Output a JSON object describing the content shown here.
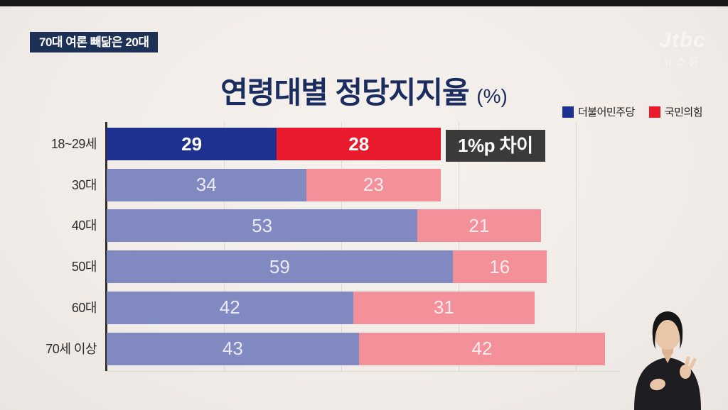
{
  "top_banner": {
    "text": "70대 여론 빼닮은 20대"
  },
  "watermark": {
    "logo": "Jtbc",
    "program": "뉴스룸"
  },
  "chart_data": {
    "type": "bar",
    "orientation": "horizontal",
    "stacked": true,
    "title": "연령대별 정당지지율",
    "unit_label": "(%)",
    "categories": [
      "18~29세",
      "30대",
      "40대",
      "50대",
      "60대",
      "70세 이상"
    ],
    "series": [
      {
        "name": "더불어민주당",
        "color": "#1e3191",
        "muted_color": "#8189c1",
        "values": [
          29,
          34,
          53,
          59,
          42,
          43
        ]
      },
      {
        "name": "국민의힘",
        "color": "#e81a2b",
        "muted_color": "#f39099",
        "values": [
          28,
          23,
          21,
          16,
          31,
          42
        ]
      }
    ],
    "highlight_row": 0,
    "annotation": {
      "text": "1%p 차이",
      "row": 0
    },
    "x_axis": {
      "min": 0,
      "max": 100,
      "gridline_interval": 20,
      "gridlines_visible": true
    },
    "legend_position": "top-right"
  },
  "colors": {
    "background": "#f2eeea",
    "banner_bg": "#1d3156",
    "title_text": "#1b2c5e",
    "callout_bg": "#3a3a3a",
    "axis_line": "#2e2b28",
    "gridline": "#ded8d2"
  }
}
